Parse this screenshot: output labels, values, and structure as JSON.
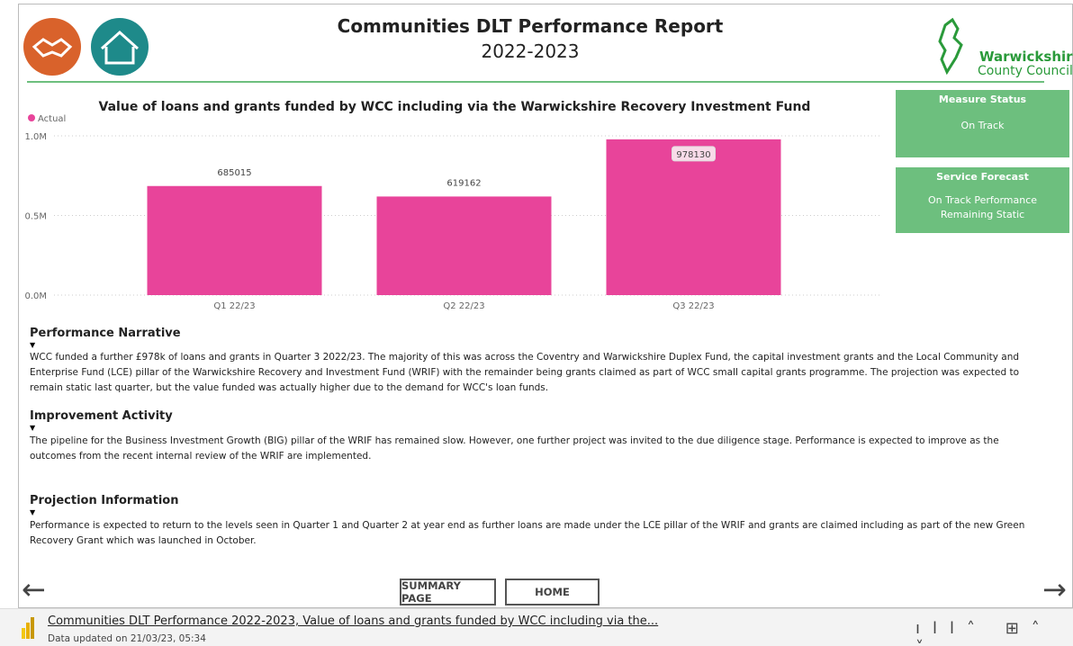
{
  "header": {
    "title": "Communities DLT Performance Report",
    "subtitle": "2022-2023",
    "logo_name": "Warwickshire",
    "logo_subname": "County Council"
  },
  "chart_data": {
    "type": "bar",
    "title": "Value of loans and grants funded by WCC including via the Warwickshire Recovery Investment Fund",
    "categories": [
      "Q1 22/23",
      "Q2 22/23",
      "Q3 22/23"
    ],
    "series": [
      {
        "name": "Actual",
        "color": "#e8449a",
        "values": [
          685015,
          619162,
          978130
        ]
      }
    ],
    "ylim": [
      0,
      1000000
    ],
    "yticks": [
      {
        "value": 0,
        "label": "0.0M"
      },
      {
        "value": 500000,
        "label": "0.5M"
      },
      {
        "value": 1000000,
        "label": "1.0M"
      }
    ],
    "grid": true
  },
  "cards": [
    {
      "title": "Measure Status",
      "text": "On Track"
    },
    {
      "title": "Service Forecast",
      "text": "On Track Performance Remaining Static"
    }
  ],
  "sections": [
    {
      "heading": "Performance Narrative",
      "text": "WCC funded a further £978k of loans and grants in Quarter 3 2022/23. The majority of this was across the Coventry and Warwickshire Duplex Fund, the capital investment grants and the Local Community and Enterprise Fund (LCE) pillar of the Warwickshire Recovery and Investment Fund (WRIF) with the remainder being grants claimed as part of WCC small capital grants programme. The projection was expected to remain static last quarter, but the value funded was actually higher due to the demand for WCC's loan funds."
    },
    {
      "heading": "Improvement Activity",
      "text": "The pipeline for the Business Investment Growth (BIG) pillar of the WRIF has remained slow. However, one further project was invited to the due diligence stage. Performance is expected to improve as the outcomes from the recent internal review of the WRIF are implemented."
    },
    {
      "heading": "Projection Information",
      "text": "Performance is expected to return to the levels seen in Quarter 1 and Quarter 2 at year end as further loans are made under the LCE pillar of the WRIF and grants are claimed including as part of the new Green Recovery Grant which was launched in October."
    }
  ],
  "buttons": [
    "SUMMARY PAGE",
    "HOME"
  ],
  "footer": {
    "link": "Communities DLT Performance 2022-2023, Value of loans and grants funded by WCC including via the...",
    "updated": "Data updated on 21/03/23, 05:34"
  }
}
